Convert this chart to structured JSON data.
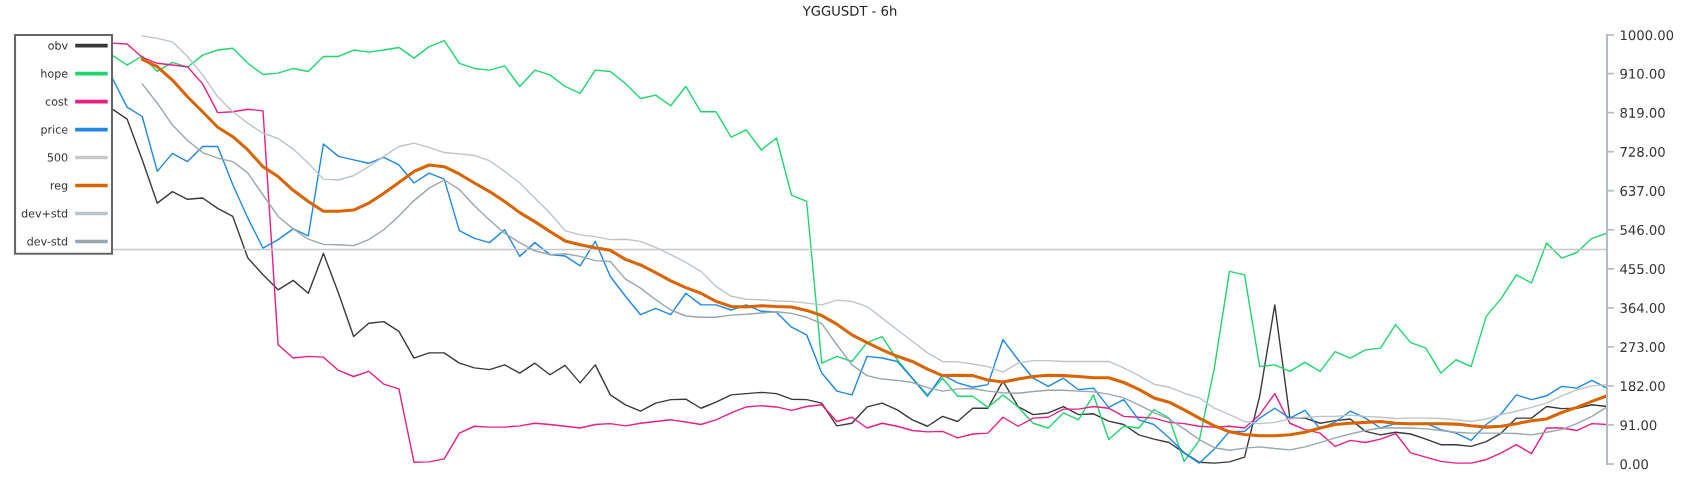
{
  "chart_data": {
    "type": "line",
    "title": "YGGUSDT - 6h",
    "categories": [
      null,
      null,
      null,
      null,
      null,
      null,
      null,
      null,
      null,
      null,
      null,
      null,
      null,
      null,
      null,
      null,
      null,
      null,
      null,
      null,
      null,
      null,
      null,
      null,
      null,
      null,
      null,
      null,
      null,
      null,
      null,
      null,
      null,
      null,
      null,
      null,
      null,
      null,
      null,
      null,
      null,
      null,
      null,
      null,
      null,
      null,
      null,
      null,
      null,
      null,
      null,
      null,
      null,
      null,
      null,
      null,
      null,
      null,
      null,
      null,
      null,
      null,
      null,
      null,
      null,
      null,
      null,
      null,
      null,
      null,
      null,
      null,
      null,
      null,
      null,
      null,
      null,
      null,
      null,
      null,
      null,
      null,
      null,
      null,
      null,
      null,
      null,
      null,
      null,
      null,
      null,
      null,
      null,
      null,
      null,
      null,
      null,
      null,
      null,
      null
    ],
    "series": [
      {
        "name": "obv",
        "color": "#3a3a3a",
        "values": [
          828,
          804,
          709,
          608,
          635,
          617,
          620,
          596,
          577,
          480,
          441,
          406,
          428,
          398,
          491,
          398,
          297,
          328,
          332,
          309,
          247,
          259,
          259,
          235,
          224,
          220,
          231,
          212,
          235,
          208,
          230,
          189,
          231,
          161,
          138,
          123,
          142,
          150,
          151,
          130,
          144,
          161,
          164,
          167,
          164,
          151,
          150,
          142,
          89,
          95,
          133,
          142,
          126,
          103,
          88,
          111,
          99,
          130,
          130,
          193,
          134,
          115,
          119,
          134,
          115,
          117,
          100,
          92,
          68,
          58,
          50,
          26,
          4,
          2,
          5,
          16,
          158,
          371,
          107,
          107,
          95,
          101,
          105,
          76,
          68,
          74,
          70,
          58,
          45,
          45,
          41,
          52,
          72,
          107,
          107,
          134,
          129,
          130,
          138,
          134
        ]
      },
      {
        "name": "hope",
        "color": "#1fd66e",
        "values": [
          953,
          930,
          951,
          915,
          936,
          925,
          953,
          965,
          969,
          934,
          908,
          911,
          922,
          915,
          950,
          950,
          965,
          960,
          965,
          971,
          946,
          973,
          987,
          934,
          922,
          918,
          928,
          880,
          918,
          907,
          880,
          864,
          918,
          915,
          887,
          852,
          860,
          835,
          880,
          821,
          821,
          762,
          779,
          732,
          760,
          627,
          612,
          235,
          251,
          239,
          283,
          297,
          243,
          200,
          161,
          200,
          158,
          158,
          132,
          161,
          133,
          95,
          84,
          119,
          103,
          161,
          57,
          88,
          84,
          127,
          107,
          6,
          55,
          224,
          449,
          441,
          227,
          231,
          216,
          237,
          216,
          262,
          247,
          266,
          270,
          325,
          283,
          270,
          212,
          243,
          227,
          344,
          386,
          441,
          422,
          515,
          480,
          493,
          526,
          538
        ]
      },
      {
        "name": "cost",
        "color": "#e91e84",
        "values": [
          981,
          979,
          948,
          934,
          930,
          926,
          886,
          819,
          821,
          827,
          823,
          278,
          247,
          251,
          249,
          218,
          204,
          216,
          186,
          175,
          4,
          5,
          12,
          72,
          88,
          86,
          86,
          89,
          95,
          92,
          88,
          84,
          92,
          94,
          89,
          95,
          99,
          103,
          98,
          92,
          103,
          119,
          133,
          136,
          133,
          125,
          134,
          138,
          99,
          109,
          84,
          95,
          88,
          78,
          75,
          76,
          61,
          70,
          72,
          109,
          88,
          107,
          109,
          128,
          128,
          134,
          130,
          111,
          109,
          107,
          97,
          94,
          88,
          86,
          88,
          84,
          115,
          164,
          95,
          80,
          72,
          41,
          55,
          50,
          58,
          71,
          26,
          16,
          6,
          2,
          2,
          10,
          26,
          45,
          24,
          84,
          84,
          78,
          94,
          92
        ]
      },
      {
        "name": "price",
        "color": "#1e88e5",
        "values": [
          901,
          832,
          810,
          682,
          724,
          705,
          740,
          740,
          651,
          573,
          503,
          523,
          548,
          532,
          746,
          717,
          709,
          701,
          715,
          697,
          655,
          678,
          664,
          544,
          526,
          516,
          546,
          484,
          516,
          488,
          485,
          462,
          519,
          437,
          391,
          348,
          363,
          348,
          398,
          371,
          371,
          359,
          371,
          356,
          354,
          319,
          301,
          212,
          170,
          161,
          251,
          247,
          239,
          200,
          158,
          208,
          189,
          179,
          185,
          290,
          243,
          200,
          181,
          200,
          173,
          177,
          132,
          150,
          103,
          92,
          61,
          26,
          2,
          35,
          76,
          76,
          107,
          130,
          107,
          125,
          82,
          98,
          123,
          107,
          84,
          94,
          92,
          95,
          80,
          72,
          55,
          92,
          117,
          161,
          150,
          159,
          181,
          177,
          195,
          177
        ]
      },
      {
        "name": "500",
        "color": "#c8c8c8",
        "values": [
          500,
          500,
          500,
          500,
          500,
          500,
          500,
          500,
          500,
          500,
          500,
          500,
          500,
          500,
          500,
          500,
          500,
          500,
          500,
          500,
          500,
          500,
          500,
          500,
          500,
          500,
          500,
          500,
          500,
          500,
          500,
          500,
          500,
          500,
          500,
          500,
          500,
          500,
          500,
          500,
          500,
          500,
          500,
          500,
          500,
          500,
          500,
          500,
          500,
          500,
          500,
          500,
          500,
          500,
          500,
          500,
          500,
          500,
          500,
          500,
          500,
          500,
          500,
          500,
          500,
          500,
          500,
          500,
          500,
          500,
          500,
          500,
          500,
          500,
          500,
          500,
          500,
          500,
          500,
          500,
          500,
          500,
          500,
          500,
          500,
          500,
          500,
          500,
          500,
          500,
          500,
          500,
          500,
          500,
          500,
          500,
          500,
          500,
          500,
          500
        ]
      },
      {
        "name": "reg",
        "color": "#d96400",
        "values": [
          null,
          null,
          943,
          926,
          895,
          856,
          821,
          785,
          763,
          732,
          693,
          670,
          638,
          612,
          589,
          589,
          592,
          608,
          631,
          656,
          682,
          697,
          693,
          676,
          655,
          635,
          612,
          586,
          565,
          542,
          520,
          511,
          504,
          498,
          477,
          464,
          446,
          427,
          411,
          398,
          379,
          367,
          366,
          369,
          367,
          366,
          358,
          346,
          326,
          301,
          283,
          266,
          251,
          239,
          221,
          206,
          207,
          206,
          196,
          191,
          198,
          204,
          207,
          206,
          204,
          201,
          201,
          190,
          174,
          154,
          144,
          126,
          107,
          89,
          75,
          69,
          66,
          66,
          68,
          74,
          84,
          92,
          95,
          97,
          99,
          95,
          94,
          94,
          94,
          93,
          89,
          86,
          88,
          94,
          101,
          105,
          120,
          132,
          146,
          159
        ]
      },
      {
        "name": "dev+std",
        "color": "#bcc4ca",
        "values": [
          null,
          null,
          998,
          992,
          984,
          950,
          907,
          856,
          821,
          794,
          771,
          759,
          734,
          701,
          664,
          662,
          672,
          693,
          717,
          740,
          748,
          738,
          726,
          723,
          719,
          707,
          682,
          655,
          620,
          585,
          544,
          534,
          530,
          523,
          524,
          519,
          505,
          488,
          470,
          449,
          414,
          391,
          384,
          383,
          380,
          379,
          375,
          371,
          382,
          379,
          367,
          340,
          313,
          286,
          259,
          239,
          238,
          233,
          227,
          214,
          235,
          241,
          241,
          239,
          239,
          239,
          239,
          224,
          206,
          186,
          179,
          165,
          154,
          130,
          115,
          99,
          94,
          97,
          105,
          109,
          111,
          111,
          114,
          111,
          109,
          106,
          107,
          107,
          106,
          103,
          99,
          105,
          115,
          123,
          132,
          142,
          159,
          173,
          182,
          185
        ]
      },
      {
        "name": "dev-std",
        "color": "#9aa6ad",
        "values": [
          null,
          null,
          886,
          841,
          790,
          754,
          726,
          713,
          705,
          678,
          627,
          577,
          548,
          524,
          512,
          511,
          509,
          523,
          546,
          578,
          614,
          643,
          662,
          640,
          602,
          569,
          538,
          516,
          497,
          488,
          490,
          484,
          474,
          472,
          431,
          410,
          383,
          359,
          345,
          342,
          342,
          347,
          349,
          352,
          355,
          351,
          342,
          327,
          278,
          231,
          206,
          198,
          195,
          190,
          178,
          170,
          175,
          176,
          170,
          166,
          165,
          169,
          172,
          172,
          170,
          168,
          163,
          154,
          138,
          120,
          105,
          82,
          57,
          38,
          32,
          37,
          40,
          36,
          33,
          40,
          50,
          61,
          70,
          78,
          84,
          84,
          84,
          82,
          78,
          74,
          72,
          72,
          72,
          71,
          68,
          74,
          80,
          94,
          111,
          133
        ]
      }
    ],
    "ylim": [
      0,
      1000
    ],
    "yticks": [
      {
        "value": 0,
        "label": "0.00"
      },
      {
        "value": 91,
        "label": "91.00"
      },
      {
        "value": 182,
        "label": "182.00"
      },
      {
        "value": 273,
        "label": "273.00"
      },
      {
        "value": 364,
        "label": "364.00"
      },
      {
        "value": 455,
        "label": "455.00"
      },
      {
        "value": 546,
        "label": "546.00"
      },
      {
        "value": 637,
        "label": "637.00"
      },
      {
        "value": 728,
        "label": "728.00"
      },
      {
        "value": 819,
        "label": "819.00"
      },
      {
        "value": 910,
        "label": "910.00"
      },
      {
        "value": 1000,
        "label": "1000.00"
      }
    ],
    "tick_labels": "y",
    "legend": "top left"
  }
}
